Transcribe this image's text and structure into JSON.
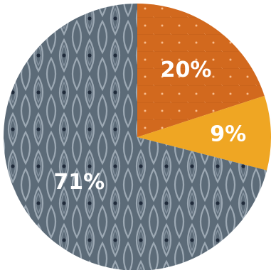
{
  "chart_data": {
    "type": "pie",
    "start_angle_deg": 90,
    "direction": "clockwise",
    "slices": [
      {
        "label": "20%",
        "value": 20,
        "color": "#D2691E",
        "pattern": "dots-on-orange"
      },
      {
        "label": "9%",
        "value": 9,
        "color": "#EFA623",
        "pattern": "solid"
      },
      {
        "label": "71%",
        "value": 71,
        "color": "#5C6B78",
        "pattern": "leaf-on-slate"
      }
    ]
  }
}
